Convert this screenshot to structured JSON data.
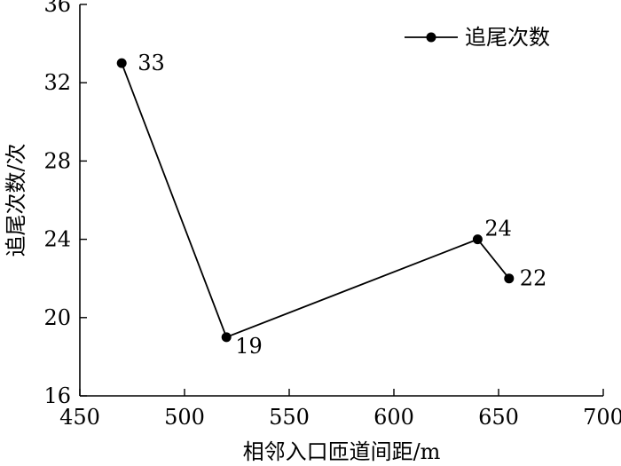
{
  "chart_data": {
    "type": "line",
    "title": "",
    "xlabel": "相邻入口匝道间距/m",
    "ylabel": "追尾次数/次",
    "xlim": [
      450,
      700
    ],
    "ylim": [
      16,
      36
    ],
    "xticks": [
      450,
      500,
      550,
      600,
      650,
      700
    ],
    "yticks": [
      16,
      20,
      24,
      28,
      32,
      36
    ],
    "grid": false,
    "legend": {
      "position": "top-right"
    },
    "series": [
      {
        "name": "追尾次数",
        "color": "#000000",
        "marker": "circle",
        "x": [
          470,
          520,
          640,
          655
        ],
        "y": [
          33,
          19,
          24,
          22
        ],
        "labels": [
          "33",
          "19",
          "24",
          "22"
        ]
      }
    ]
  }
}
